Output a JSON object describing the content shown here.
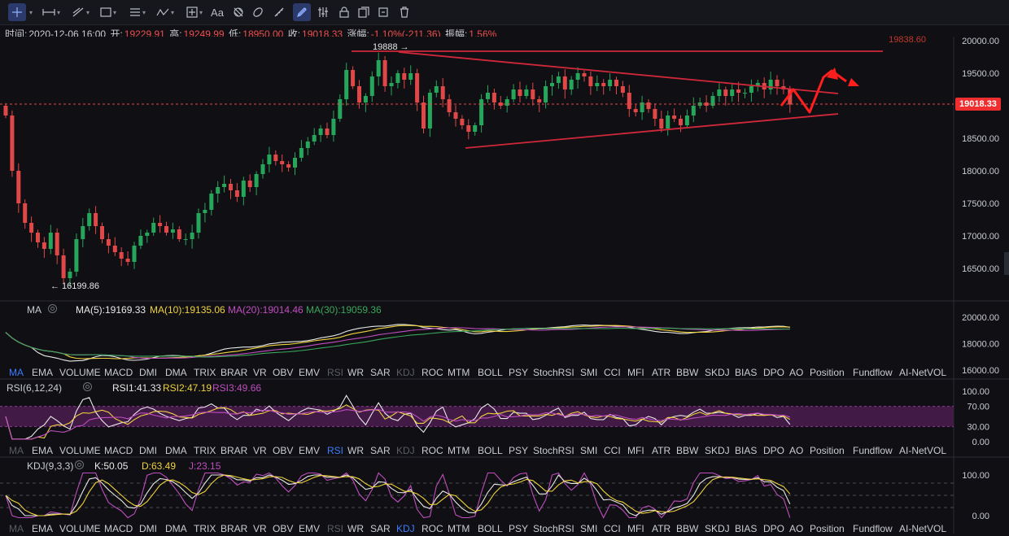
{
  "toolbar": {
    "icons": [
      "crosshair-icon",
      "horizontal-line-icon",
      "trend-line-icon",
      "rectangle-icon",
      "parallel-lines-icon",
      "wave-icon",
      "measure-icon",
      "text-icon",
      "pattern-icon",
      "magnet-icon",
      "ruler-icon",
      "drawing-mode-icon",
      "settings-icon",
      "lock-icon",
      "copy-icon",
      "trash-icon"
    ],
    "text_tool_label": "Aa"
  },
  "info": {
    "time_label": "时间:",
    "time_value": "2020-12-06 16:00",
    "open_label": "开:",
    "open_value": "19229.91",
    "high_label": "高:",
    "high_value": "19249.99",
    "low_label": "低:",
    "low_value": "18950.00",
    "close_label": "收:",
    "close_value": "19018.33",
    "change_label": "涨幅:",
    "change_value": "-1.10%(-211.36)",
    "amp_label": "振幅:",
    "amp_value": "1.56%"
  },
  "colors": {
    "up": "#26a65b",
    "down": "#e04848",
    "bg": "#101014",
    "accent": "#3d7bff",
    "ma5": "#e8e8e8",
    "ma10": "#f0d23c",
    "ma20": "#c04dc0",
    "ma30": "#3aa55a"
  },
  "chart_data": [
    {
      "type": "candlestick",
      "title": "",
      "current_price": "19018.33",
      "dashed_level_label": "19838.60",
      "high_marker": "19888 →",
      "low_marker": "← 16199.86",
      "y_ticks": [
        "20000.00",
        "19500.00",
        "19000.00",
        "18500.00",
        "18000.00",
        "17500.00",
        "17000.00",
        "16500.00"
      ],
      "ylim": [
        16150,
        20200
      ],
      "closes": [
        18850,
        18000,
        17500,
        17200,
        17050,
        16900,
        16800,
        17050,
        16700,
        16350,
        16450,
        16950,
        17150,
        17350,
        17150,
        16950,
        16850,
        16750,
        16650,
        16600,
        16850,
        17000,
        17050,
        17200,
        17150,
        17050,
        17100,
        16950,
        16950,
        17050,
        17350,
        17400,
        17650,
        17750,
        17800,
        17700,
        17600,
        17850,
        17750,
        17950,
        18100,
        18250,
        18150,
        18100,
        18050,
        18200,
        18350,
        18450,
        18550,
        18650,
        18550,
        18800,
        19100,
        19550,
        19300,
        19050,
        19150,
        19450,
        19700,
        19300,
        19350,
        19500,
        19400,
        19500,
        19050,
        18650,
        19200,
        19300,
        19100,
        18900,
        18800,
        18700,
        18600,
        18700,
        19100,
        19200,
        19050,
        19000,
        19100,
        19250,
        19150,
        19250,
        19100,
        19050,
        19300,
        19350,
        19450,
        19250,
        19400,
        19500,
        19450,
        19300,
        19350,
        19300,
        19400,
        19300,
        19200,
        18950,
        18900,
        19050,
        18950,
        18800,
        18650,
        18850,
        18800,
        18700,
        18850,
        19000,
        19050,
        19000,
        19150,
        19250,
        19150,
        19250,
        19200,
        19200,
        19300,
        19350,
        19250,
        19400,
        19300,
        19250,
        19018
      ]
    },
    {
      "type": "line",
      "title": "MA",
      "legend": [
        {
          "name": "MA(5):19169.33",
          "color": "#e8e8e8"
        },
        {
          "name": "MA(10):19135.06",
          "color": "#f0d23c"
        },
        {
          "name": "MA(20):19014.46",
          "color": "#c04dc0"
        },
        {
          "name": "MA(30):19059.36",
          "color": "#3aa55a"
        }
      ],
      "y_ticks": [
        "20000.00",
        "18000.00",
        "16000.00"
      ]
    },
    {
      "type": "line",
      "title": "RSI(6,12,24)",
      "legend": [
        {
          "name": "RSI1:41.33",
          "color": "#e8e8e8"
        },
        {
          "name": "RSI2:47.19",
          "color": "#f0d23c"
        },
        {
          "name": "RSI3:49.66",
          "color": "#c04dc0"
        }
      ],
      "y_ticks": [
        "100.00",
        "70.00",
        "30.00",
        "0.00"
      ]
    },
    {
      "type": "line",
      "title": "KDJ(9,3,3)",
      "legend": [
        {
          "name": "K:50.05",
          "color": "#e8e8e8"
        },
        {
          "name": "D:63.49",
          "color": "#f0d23c"
        },
        {
          "name": "J:23.15",
          "color": "#c04dc0"
        }
      ],
      "y_ticks": [
        "100.00",
        "0.00"
      ]
    }
  ],
  "indicator_tabs": [
    "MA",
    "EMA",
    "VOLUME",
    "MACD",
    "DMI",
    "DMA",
    "TRIX",
    "BRAR",
    "VR",
    "OBV",
    "EMV",
    "RSI",
    "WR",
    "SAR",
    "KDJ",
    "ROC",
    "MTM",
    "BOLL",
    "PSY",
    "StochRSI",
    "SMI",
    "CCI",
    "MFI",
    "ATR",
    "BBW",
    "SKDJ",
    "BIAS",
    "DPO",
    "AO",
    "Position",
    "Fundflow",
    "AI-NetVOL"
  ]
}
